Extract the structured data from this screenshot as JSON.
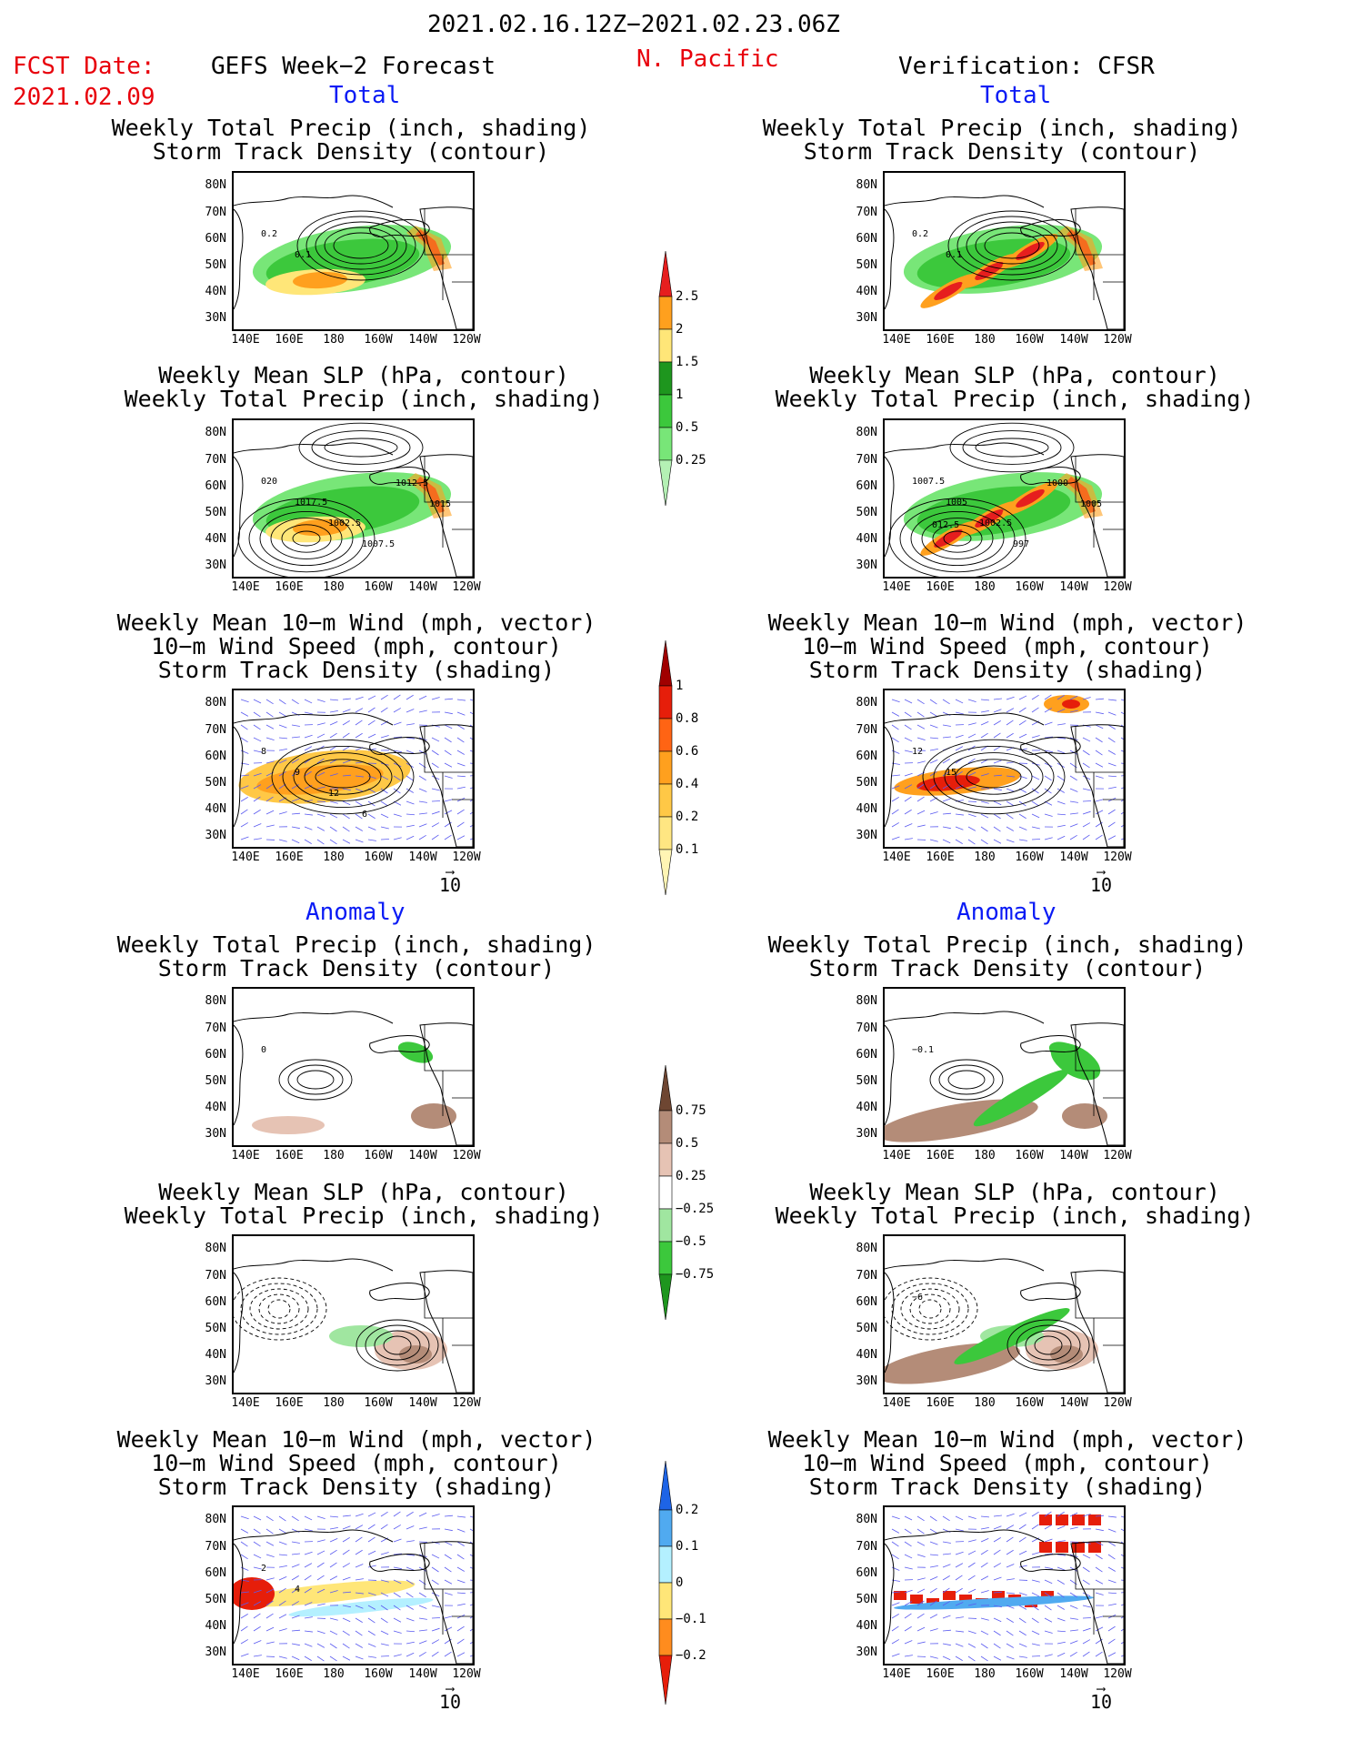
{
  "header": {
    "date_range": "2021.02.16.12Z−2021.02.23.06Z",
    "fcst_label": "FCST Date:",
    "fcst_date": "2021.02.09",
    "left_title": "GEFS Week−2 Forecast",
    "region": "N. Pacific",
    "right_title": "Verification: CFSR"
  },
  "sections": {
    "total": "Total",
    "anomaly": "Anomaly"
  },
  "panel_titles": {
    "precip_storm": "Weekly Total Precip (inch, shading)\nStorm Track Density (contour)",
    "slp_precip": "Weekly Mean SLP (hPa, contour)\nWeekly Total Precip (inch, shading)",
    "wind_storm": "Weekly Mean 10−m Wind (mph, vector)\n10−m Wind Speed (mph, contour)\nStorm Track Density (shading)"
  },
  "axes": {
    "lat_ticks": [
      "80N",
      "70N",
      "60N",
      "50N",
      "40N",
      "30N"
    ],
    "lon_ticks": [
      "140E",
      "160E",
      "180",
      "160W",
      "140W",
      "120W"
    ]
  },
  "vector_reference": "10",
  "colorbars": {
    "precip_total": {
      "labels": [
        "0.25",
        "0.5",
        "1",
        "1.5",
        "2",
        "2.5"
      ],
      "colors": [
        "#b4f0b4",
        "#78e678",
        "#3cc83c",
        "#1e961e",
        "#ffe678",
        "#ffa01e",
        "#e61e1e"
      ]
    },
    "storm_total": {
      "labels": [
        "0.1",
        "0.2",
        "0.4",
        "0.6",
        "0.8",
        "1"
      ],
      "colors": [
        "#fff5b4",
        "#ffe682",
        "#ffc846",
        "#ffa01e",
        "#ff6414",
        "#e61e0a",
        "#a00000"
      ]
    },
    "precip_anom": {
      "labels": [
        "0.75",
        "0.5",
        "0.25",
        "−0.25",
        "−0.5",
        "−0.75"
      ],
      "colors": [
        "#1e961e",
        "#3cc83c",
        "#a0e6a0",
        "#ffffff",
        "#e6c3b4",
        "#b48c78",
        "#6e4632"
      ]
    },
    "storm_anom": {
      "labels": [
        "0.2",
        "0.1",
        "0",
        "−0.1",
        "−0.2"
      ],
      "colors": [
        "#e61e0a",
        "#ff8c1e",
        "#ffe678",
        "#b4f0ff",
        "#50aaf0",
        "#1e64e6"
      ]
    }
  },
  "contour_labels": {
    "p1_left": [
      "0.2",
      "0.1"
    ],
    "p1_right": [
      "0.2",
      "0.1"
    ],
    "p2_left": [
      "020",
      "1017.5",
      "1002.5",
      "1007.5",
      "1012.5",
      "1015"
    ],
    "p2_right": [
      "1007.5",
      "1005",
      "1002.5",
      "997",
      "1000",
      "1005",
      "012.5"
    ],
    "p3_left": [
      "8",
      "9",
      "12",
      "6"
    ],
    "p3_right": [
      "12",
      "15"
    ],
    "p4_left": [
      "0"
    ],
    "p4_right": [
      "−0.1"
    ],
    "p5_right": [
      "−6"
    ],
    "p6_left": [
      "2",
      "4"
    ]
  }
}
